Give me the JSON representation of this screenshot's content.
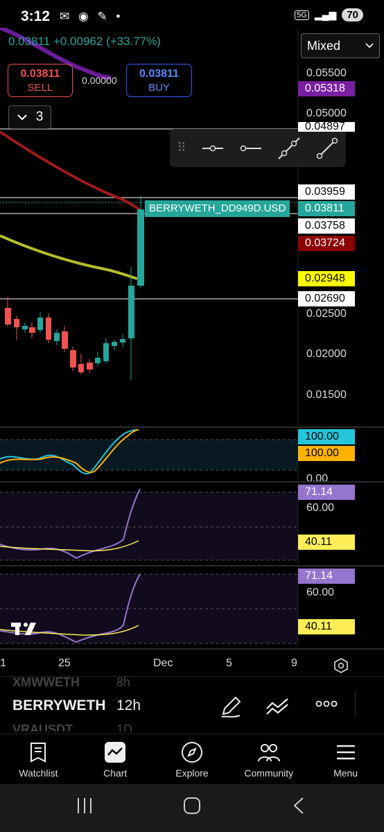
{
  "status_bar": {
    "time": "3:12",
    "network": "5G",
    "battery": "70"
  },
  "quote": {
    "last": "0.03811",
    "change": "+0.00962",
    "change_pct": "(+33.77%)"
  },
  "trade": {
    "sell_price": "0.03811",
    "sell_label": "SELL",
    "spread": "0.00000",
    "buy_price": "0.03811",
    "buy_label": "BUY"
  },
  "indicators_toggle": {
    "count": "3"
  },
  "chart_type_select": {
    "value": "Mixed"
  },
  "symbol_label": "BERRYWETH_DD949D.USD",
  "price_axis": {
    "plain": [
      "0.05500",
      "0.05000",
      "0.02500",
      "0.02000",
      "0.01500"
    ],
    "boxed": [
      {
        "value": "0.05318",
        "bg": "#7b1fa2",
        "fg": "#ffffff"
      },
      {
        "value": "0.04897",
        "bg": "#ffffff",
        "fg": "#000000"
      },
      {
        "value": "0.03959",
        "bg": "#ffffff",
        "fg": "#000000"
      },
      {
        "value": "0.03811",
        "bg": "#26a69a",
        "fg": "#ffffff"
      },
      {
        "value": "0.03758",
        "bg": "#ffffff",
        "fg": "#000000"
      },
      {
        "value": "0.03724",
        "bg": "#8b0000",
        "fg": "#ffffff"
      },
      {
        "value": "0.02948",
        "bg": "#ffff00",
        "fg": "#000000"
      },
      {
        "value": "0.02690",
        "bg": "#ffffff",
        "fg": "#000000"
      }
    ]
  },
  "pane1_axis": {
    "a": "100.00",
    "b": "100.00",
    "c": "0.00"
  },
  "pane2_axis": {
    "a": "71.14",
    "b": "60.00",
    "c": "40.11"
  },
  "pane3_axis": {
    "a": "71.14",
    "b": "60.00",
    "c": "40.11"
  },
  "time_axis": [
    "1",
    "25",
    "Dec",
    "5",
    "9"
  ],
  "symbols": {
    "prev": "XMWWETH",
    "prev_tf": "8h",
    "current": "BERRYWETH",
    "current_tf": "12h",
    "next": "VRAUSDT",
    "next_tf": "1D"
  },
  "tabs": [
    {
      "label": "Watchlist",
      "icon": "watchlist-icon"
    },
    {
      "label": "Chart",
      "icon": "chart-icon"
    },
    {
      "label": "Explore",
      "icon": "explore-icon"
    },
    {
      "label": "Community",
      "icon": "community-icon"
    },
    {
      "label": "Menu",
      "icon": "menu-icon"
    }
  ],
  "colors": {
    "up": "#26a69a",
    "down": "#ef5350",
    "ma_red": "#b71c1c",
    "ma_yellow": "#c0ca33",
    "ma_purple": "#6a1b9a"
  }
}
